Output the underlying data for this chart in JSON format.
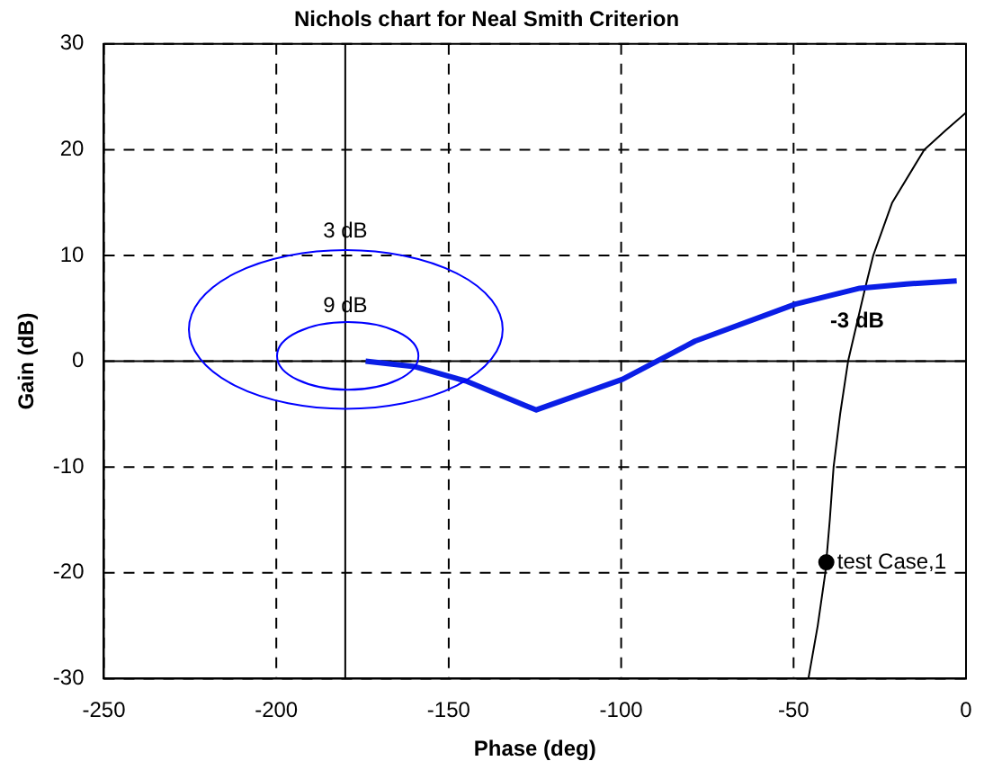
{
  "chart_data": {
    "type": "line",
    "title": "Nichols chart for Neal Smith Criterion",
    "xlabel": "Phase (deg)",
    "ylabel": "Gain (dB)",
    "xlim": [
      -250,
      0
    ],
    "xticks": [
      -250,
      -200,
      -150,
      -100,
      -50,
      0
    ],
    "ylim": [
      -30,
      30
    ],
    "yticks": [
      -30,
      -20,
      -10,
      0,
      10,
      20,
      30
    ],
    "grid": true,
    "legend": false,
    "marker": "none",
    "line_style": "solid",
    "ref_lines": [
      {
        "axis": "x",
        "value": -180,
        "color": "#000000",
        "line_style": "solid"
      },
      {
        "axis": "y",
        "value": 0,
        "color": "#000000",
        "line_style": "solid"
      }
    ],
    "annotations": [
      "3 dB",
      "9 dB",
      {
        "text": "test Case,1",
        "x": -40.5,
        "y": -19
      }
    ],
    "series": [
      {
        "type": "line",
        "color": "#0a1ee6",
        "x": [
          -174.1,
          -160,
          -144.7,
          -127.7,
          -124.6,
          -99.6,
          -78.6,
          -49.5,
          -30.8,
          -17.3,
          -2.7
        ],
        "values": [
          0,
          -0.5,
          -1.9,
          -4.2,
          -4.6,
          -1.7,
          1.9,
          5.4,
          6.9,
          7.3,
          7.6
        ]
      },
      {
        "type": "line",
        "name": "-3 dB",
        "color": "#000000",
        "x": [
          -45.7,
          -43,
          -40.8,
          -39.5,
          -38.4,
          -36.5,
          -34.2,
          -29.4,
          -26.9,
          -21.4,
          -12.1,
          -6,
          0
        ],
        "values": [
          -30,
          -25,
          -20,
          -15,
          -10,
          -5,
          0,
          6.7,
          10,
          15,
          20,
          21.8,
          23.5
        ]
      },
      {
        "type": "scatter",
        "color": "#000000",
        "marker": "circle",
        "x": [
          -40.5
        ],
        "values": [
          -19
        ]
      }
    ]
  }
}
